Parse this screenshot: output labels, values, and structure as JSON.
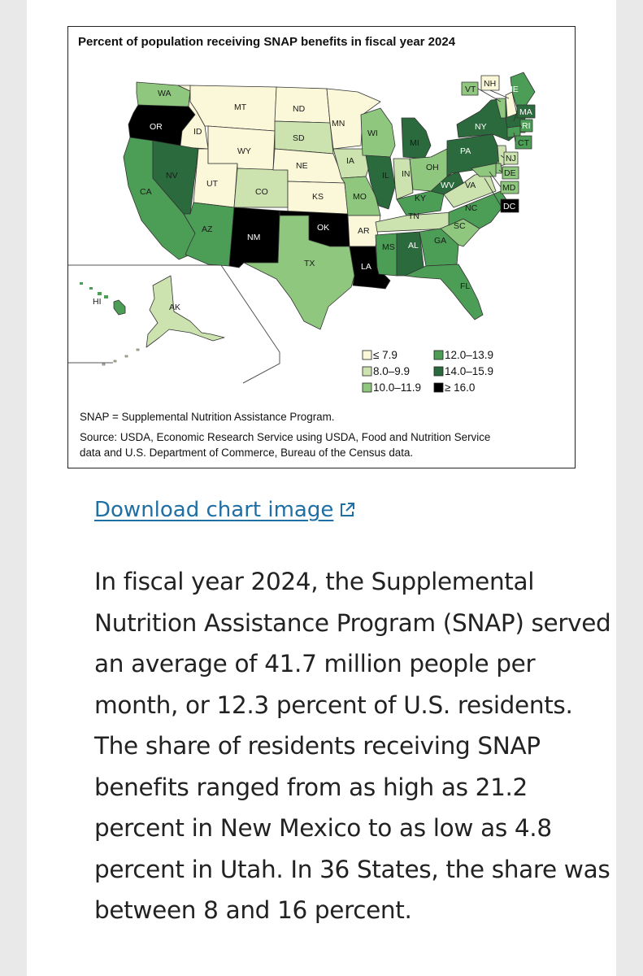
{
  "colors": {
    "bin_le_7_9": "#fbf8d9",
    "bin_8_0_9_9": "#cce3b0",
    "bin_10_0_11_9": "#8fc77f",
    "bin_12_0_13_9": "#4c9d55",
    "bin_14_0_15_9": "#2a6a3c",
    "bin_ge_16_0": "#000000",
    "link": "#1f6fa5"
  },
  "chart_data": {
    "type": "choropleth",
    "title": "Percent of population receiving SNAP benefits in fiscal year 2024",
    "legend": [
      {
        "label": "≤ 7.9",
        "bin": "bin_le_7_9"
      },
      {
        "label": "8.0–9.9",
        "bin": "bin_8_0_9_9"
      },
      {
        "label": "10.0–11.9",
        "bin": "bin_10_0_11_9"
      },
      {
        "label": "12.0–13.9",
        "bin": "bin_12_0_13_9"
      },
      {
        "label": "14.0–15.9",
        "bin": "bin_14_0_15_9"
      },
      {
        "label": "≥ 16.0",
        "bin": "bin_ge_16_0"
      }
    ],
    "states": [
      {
        "abbr": "WA",
        "bin": "bin_10_0_11_9"
      },
      {
        "abbr": "OR",
        "bin": "bin_ge_16_0"
      },
      {
        "abbr": "CA",
        "bin": "bin_12_0_13_9"
      },
      {
        "abbr": "ID",
        "bin": "bin_le_7_9"
      },
      {
        "abbr": "NV",
        "bin": "bin_14_0_15_9"
      },
      {
        "abbr": "UT",
        "bin": "bin_le_7_9"
      },
      {
        "abbr": "AZ",
        "bin": "bin_12_0_13_9"
      },
      {
        "abbr": "MT",
        "bin": "bin_le_7_9"
      },
      {
        "abbr": "WY",
        "bin": "bin_le_7_9"
      },
      {
        "abbr": "CO",
        "bin": "bin_8_0_9_9"
      },
      {
        "abbr": "NM",
        "bin": "bin_ge_16_0"
      },
      {
        "abbr": "ND",
        "bin": "bin_le_7_9"
      },
      {
        "abbr": "SD",
        "bin": "bin_8_0_9_9"
      },
      {
        "abbr": "NE",
        "bin": "bin_le_7_9"
      },
      {
        "abbr": "KS",
        "bin": "bin_le_7_9"
      },
      {
        "abbr": "OK",
        "bin": "bin_ge_16_0"
      },
      {
        "abbr": "TX",
        "bin": "bin_10_0_11_9"
      },
      {
        "abbr": "MN",
        "bin": "bin_le_7_9"
      },
      {
        "abbr": "IA",
        "bin": "bin_8_0_9_9"
      },
      {
        "abbr": "MO",
        "bin": "bin_10_0_11_9"
      },
      {
        "abbr": "AR",
        "bin": "bin_le_7_9"
      },
      {
        "abbr": "LA",
        "bin": "bin_ge_16_0"
      },
      {
        "abbr": "WI",
        "bin": "bin_10_0_11_9"
      },
      {
        "abbr": "IL",
        "bin": "bin_14_0_15_9"
      },
      {
        "abbr": "MI",
        "bin": "bin_14_0_15_9"
      },
      {
        "abbr": "IN",
        "bin": "bin_8_0_9_9"
      },
      {
        "abbr": "OH",
        "bin": "bin_10_0_11_9"
      },
      {
        "abbr": "KY",
        "bin": "bin_12_0_13_9"
      },
      {
        "abbr": "TN",
        "bin": "bin_8_0_9_9"
      },
      {
        "abbr": "MS",
        "bin": "bin_12_0_13_9"
      },
      {
        "abbr": "AL",
        "bin": "bin_14_0_15_9"
      },
      {
        "abbr": "GA",
        "bin": "bin_12_0_13_9"
      },
      {
        "abbr": "FL",
        "bin": "bin_12_0_13_9"
      },
      {
        "abbr": "SC",
        "bin": "bin_10_0_11_9"
      },
      {
        "abbr": "NC",
        "bin": "bin_12_0_13_9"
      },
      {
        "abbr": "VA",
        "bin": "bin_8_0_9_9"
      },
      {
        "abbr": "WV",
        "bin": "bin_14_0_15_9"
      },
      {
        "abbr": "PA",
        "bin": "bin_14_0_15_9"
      },
      {
        "abbr": "NY",
        "bin": "bin_14_0_15_9"
      },
      {
        "abbr": "VT",
        "bin": "bin_10_0_11_9"
      },
      {
        "abbr": "NH",
        "bin": "bin_le_7_9"
      },
      {
        "abbr": "ME",
        "bin": "bin_12_0_13_9"
      },
      {
        "abbr": "MA",
        "bin": "bin_14_0_15_9"
      },
      {
        "abbr": "RI",
        "bin": "bin_12_0_13_9"
      },
      {
        "abbr": "CT",
        "bin": "bin_12_0_13_9"
      },
      {
        "abbr": "NJ",
        "bin": "bin_8_0_9_9"
      },
      {
        "abbr": "DE",
        "bin": "bin_10_0_11_9"
      },
      {
        "abbr": "MD",
        "bin": "bin_10_0_11_9"
      },
      {
        "abbr": "DC",
        "bin": "bin_ge_16_0"
      },
      {
        "abbr": "AK",
        "bin": "bin_8_0_9_9"
      },
      {
        "abbr": "HI",
        "bin": "bin_12_0_13_9"
      }
    ]
  },
  "notes": {
    "abbreviation": "SNAP = Supplemental Nutrition Assistance Program.",
    "source_line1": "Source: USDA, Economic Research Service using USDA, Food and Nutrition Service",
    "source_line2": "data and U.S. Department of Commerce, Bureau of the Census data."
  },
  "download_link": "Download chart image",
  "body_text": "In fiscal year 2024, the Supplemental Nutrition Assistance Program (SNAP) served an average of 41.7 million people per month, or 12.3 percent of U.S. residents. The share of residents receiving SNAP benefits ranged from as high as 21.2 percent in New Mexico to as low as 4.8 percent in Utah. In 36 States, the share was between 8 and 16 percent."
}
